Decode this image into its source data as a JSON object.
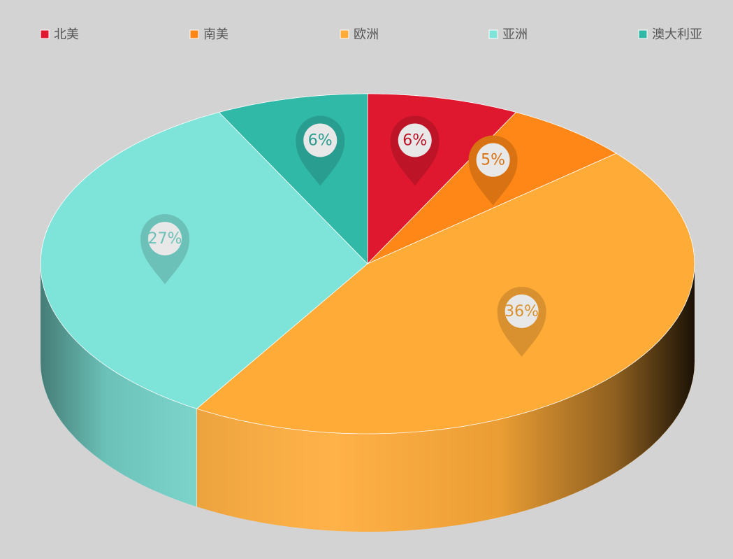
{
  "chart_data": {
    "type": "pie",
    "categories": [
      "北美",
      "南美",
      "欧洲",
      "亚洲",
      "澳大利亚"
    ],
    "values": [
      6,
      5,
      36,
      27,
      6
    ],
    "value_labels": [
      "6%",
      "5%",
      "36%",
      "27%",
      "6%"
    ],
    "colors": [
      "#e0182f",
      "#ff8717",
      "#ffab38",
      "#7ee3d8",
      "#31b9a8"
    ],
    "legend": "top"
  }
}
